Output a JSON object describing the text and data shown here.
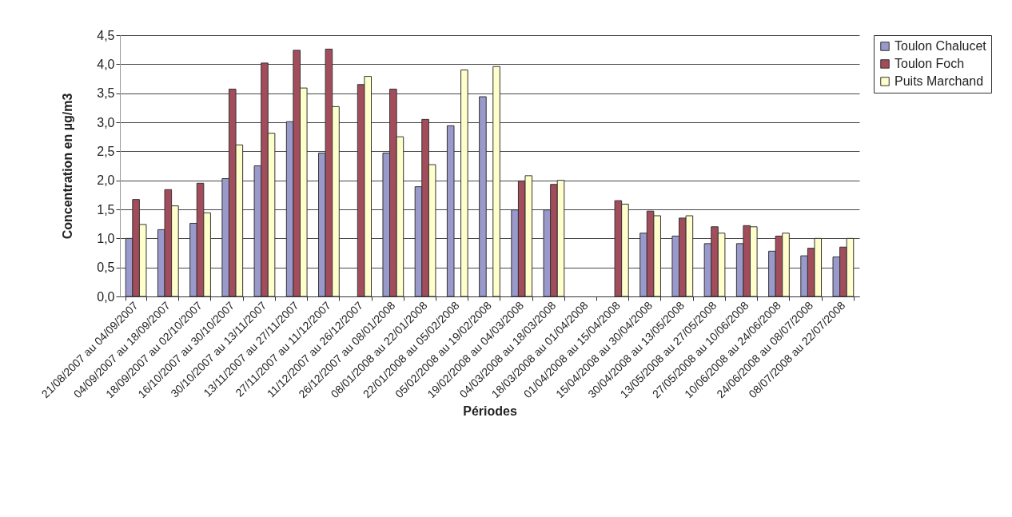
{
  "chart_data": {
    "type": "bar",
    "xlabel": "Périodes",
    "ylabel": "Concentration en µg/m3",
    "categories": [
      "21/08/2007 au 04/09/2007",
      "04/09/2007 au 18/09/2007",
      "18/09/2007 au 02/10/2007",
      "16/10/2007 au 30/10/2007",
      "30/10/2007 au 13/11/2007",
      "13/11/2007 au 27/11/2007",
      "27/11/2007 au 11/12/2007",
      "11/12/2007 au 26/12/2007",
      "26/12/2007 au 08/01/2008",
      "08/01/2008 au 22/01/2008",
      "22/01/2008 au 05/02/2008",
      "05/02/2008 au 19/02/2008",
      "19/02/2008 au 04/03/2008",
      "04/03/2008 au 18/03/2008",
      "18/03/2008 au 01/04/2008",
      "01/04/2008 au 15/04/2008",
      "15/04/2008 au 30/04/2008",
      "30/04/2008 au 13/05/2008",
      "13/05/2008 au 27/05/2008",
      "27/05/2008 au 10/06/2008",
      "10/06/2008 au 24/06/2008",
      "24/06/2008 au 08/07/2008",
      "08/07/2008 au 22/07/2008"
    ],
    "series": [
      {
        "name": "Toulon Chalucet",
        "color": "#9999cc",
        "values": [
          1.0,
          1.15,
          1.26,
          2.03,
          2.25,
          3.01,
          2.47,
          null,
          2.47,
          1.89,
          2.94,
          3.44,
          1.49,
          1.49,
          null,
          null,
          1.09,
          1.04,
          0.91,
          0.91,
          0.78,
          0.7,
          0.68
        ]
      },
      {
        "name": "Toulon Foch",
        "color": "#a34d5c",
        "values": [
          1.67,
          1.84,
          1.95,
          3.57,
          4.02,
          4.24,
          4.26,
          3.65,
          3.57,
          3.05,
          null,
          null,
          1.99,
          1.93,
          null,
          1.65,
          1.47,
          1.35,
          1.2,
          1.22,
          1.04,
          0.83,
          0.85
        ]
      },
      {
        "name": "Puits Marchand",
        "color": "#ffffcc",
        "values": [
          1.24,
          1.56,
          1.44,
          2.61,
          2.81,
          3.59,
          3.27,
          3.79,
          2.75,
          2.27,
          3.9,
          3.96,
          2.08,
          2.0,
          null,
          1.59,
          1.39,
          1.39,
          1.09,
          1.2,
          1.09,
          1.0,
          1.0
        ]
      }
    ],
    "ylim": [
      0,
      4.5
    ],
    "yticks": [
      {
        "value": 0,
        "label": "0,0"
      },
      {
        "value": 0.5,
        "label": "0,5"
      },
      {
        "value": 1,
        "label": "1,0"
      },
      {
        "value": 1.5,
        "label": "1,5"
      },
      {
        "value": 2,
        "label": "2,0"
      },
      {
        "value": 2.5,
        "label": "2,5"
      },
      {
        "value": 3,
        "label": "3,0"
      },
      {
        "value": 3.5,
        "label": "3,5"
      },
      {
        "value": 4,
        "label": "4,0"
      },
      {
        "value": 4.5,
        "label": "4,5"
      }
    ],
    "grid": "y",
    "legend": "right"
  }
}
